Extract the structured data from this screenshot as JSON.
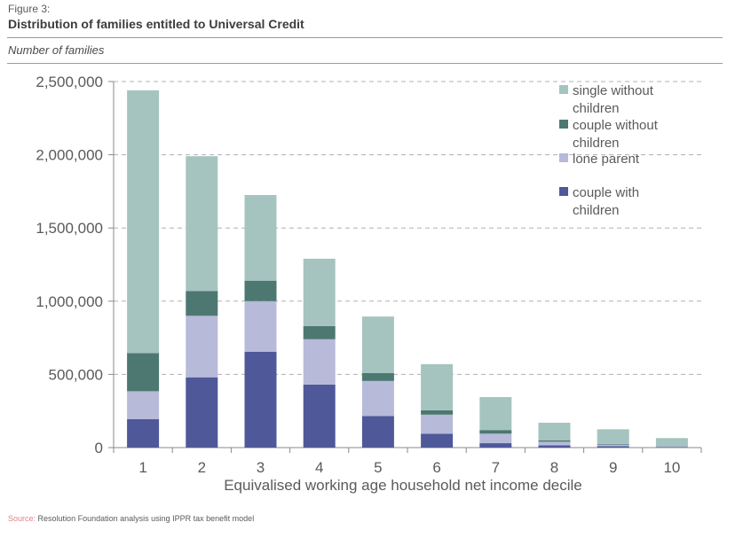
{
  "header": {
    "figure_label": "Figure 3:",
    "title": "Distribution of families entitled to Universal Credit",
    "units": "Number of families"
  },
  "footer": {
    "source_key": "Source:",
    "source_text": "Resolution Foundation analysis using IPPR tax benefit model"
  },
  "chart_data": {
    "type": "bar",
    "stacked": true,
    "categories": [
      "1",
      "2",
      "3",
      "4",
      "5",
      "6",
      "7",
      "8",
      "9",
      "10"
    ],
    "xlabel": "Equivalised working age household net income decile",
    "ylabel": "",
    "ylim": [
      0,
      2500000
    ],
    "yticks": [
      0,
      500000,
      1000000,
      1500000,
      2000000,
      2500000
    ],
    "ytick_labels": [
      "0",
      "500,000",
      "1,000,000",
      "1,500,000",
      "2,000,000",
      "2,500,000"
    ],
    "grid": true,
    "legend_position": "top-right",
    "series": [
      {
        "name": "couple with children",
        "color": "#4f5899",
        "values": [
          195000,
          480000,
          655000,
          430000,
          215000,
          95000,
          30000,
          15000,
          10000,
          3000
        ]
      },
      {
        "name": "lone parent",
        "color": "#b7bad9",
        "values": [
          190000,
          420000,
          345000,
          310000,
          240000,
          130000,
          65000,
          25000,
          10000,
          5000
        ]
      },
      {
        "name": "couple without children",
        "color": "#4d7871",
        "values": [
          260000,
          170000,
          140000,
          90000,
          55000,
          30000,
          25000,
          10000,
          5000,
          2000
        ]
      },
      {
        "name": "single without children",
        "color": "#a5c4c0",
        "values": [
          1795000,
          920000,
          585000,
          460000,
          385000,
          315000,
          225000,
          120000,
          100000,
          55000
        ]
      }
    ],
    "legend": [
      {
        "lines": [
          "single without",
          "children"
        ],
        "color": "#a5c4c0"
      },
      {
        "lines": [
          "couple without",
          "children"
        ],
        "color": "#4d7871"
      },
      {
        "lines": [
          "lone parent"
        ],
        "color": "#b7bad9"
      },
      {
        "lines": [
          "couple with",
          "children"
        ],
        "color": "#4f5899"
      }
    ]
  }
}
